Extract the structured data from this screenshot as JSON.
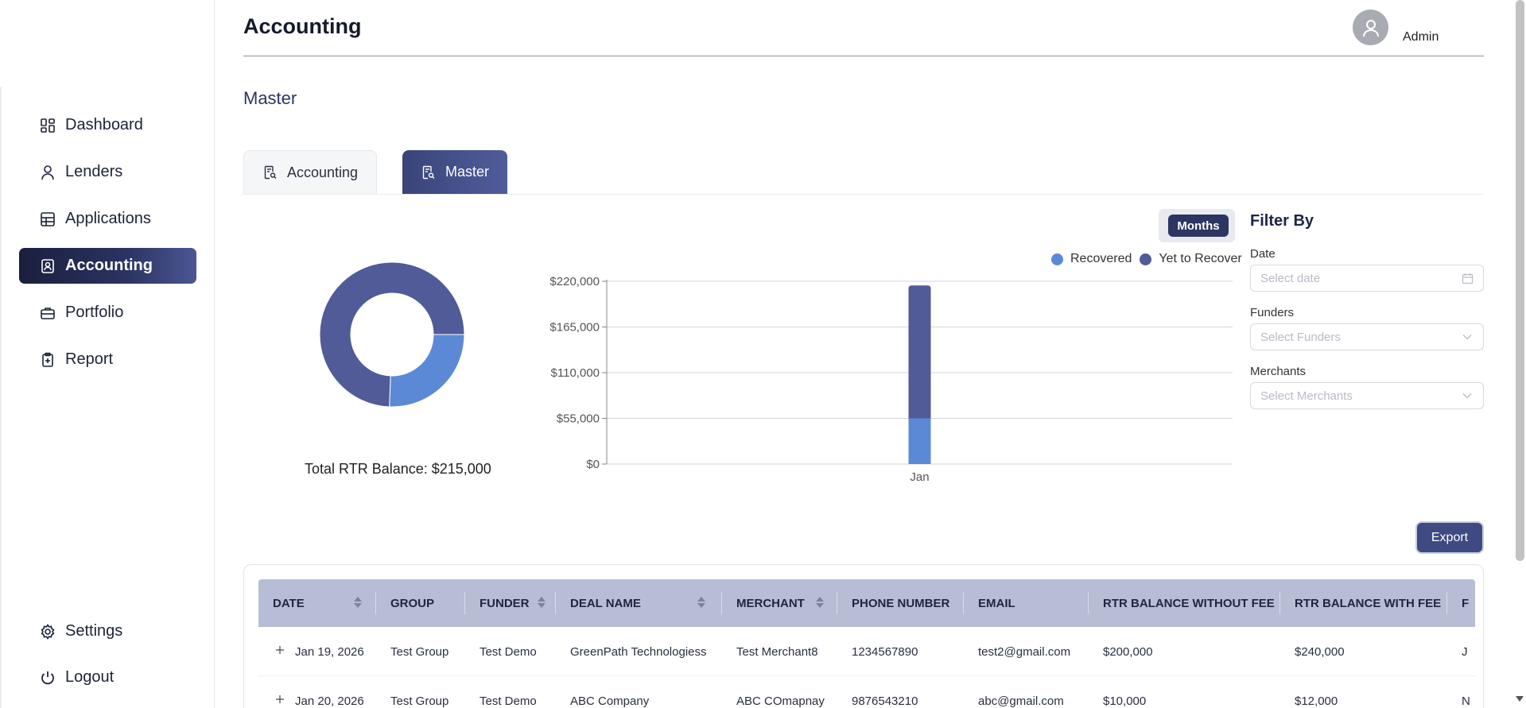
{
  "app": {
    "title": "Accounting"
  },
  "user": {
    "name": "Admin"
  },
  "sidebar": {
    "items": [
      {
        "label": "Dashboard",
        "icon": "dashboard-icon"
      },
      {
        "label": "Lenders",
        "icon": "user-icon"
      },
      {
        "label": "Applications",
        "icon": "table-icon"
      },
      {
        "label": "Accounting",
        "icon": "contact-book-icon",
        "active": true
      },
      {
        "label": "Portfolio",
        "icon": "briefcase-icon"
      },
      {
        "label": "Report",
        "icon": "clipboard-plus-icon"
      }
    ],
    "bottom": [
      {
        "label": "Settings",
        "icon": "gear-icon"
      },
      {
        "label": "Logout",
        "icon": "power-icon"
      }
    ]
  },
  "section": {
    "title": "Master"
  },
  "tabs": [
    {
      "label": "Accounting",
      "active": false
    },
    {
      "label": "Master",
      "active": true
    }
  ],
  "donut": {
    "caption": "Total RTR Balance: $215,000",
    "slices": [
      {
        "name": "Recovered",
        "value": 55000,
        "color": "#5b89d6"
      },
      {
        "name": "Yet to Recover",
        "value": 160000,
        "color": "#505b98"
      }
    ]
  },
  "chart_controls": {
    "period_label": "Months"
  },
  "chart_data": {
    "type": "bar",
    "stacked": true,
    "categories": [
      "Jan"
    ],
    "series": [
      {
        "name": "Recovered",
        "values": [
          55000
        ],
        "color": "#5b89d6"
      },
      {
        "name": "Yet to Recover",
        "values": [
          160000
        ],
        "color": "#505b98"
      }
    ],
    "ylim": [
      0,
      220000
    ],
    "yticks": [
      0,
      55000,
      110000,
      165000,
      220000
    ],
    "ytick_labels": [
      "$0",
      "$55,000",
      "$110,000",
      "$165,000",
      "$220,000"
    ],
    "grid": true,
    "legend": "top-right"
  },
  "filters": {
    "title": "Filter By",
    "date": {
      "label": "Date",
      "placeholder": "Select date"
    },
    "funders": {
      "label": "Funders",
      "placeholder": "Select Funders"
    },
    "merchants": {
      "label": "Merchants",
      "placeholder": "Select Merchants"
    }
  },
  "export": {
    "label": "Export"
  },
  "table": {
    "columns": [
      "DATE",
      "GROUP",
      "FUNDER",
      "DEAL NAME",
      "MERCHANT",
      "PHONE NUMBER",
      "EMAIL",
      "RTR BALANCE WITHOUT FEE",
      "RTR BALANCE WITH FEE",
      "F"
    ],
    "rows": [
      {
        "date": "Jan 19, 2026",
        "group": "Test Group",
        "funder": "Test Demo",
        "deal": "GreenPath Technologiess",
        "merchant": "Test Merchant8",
        "phone": "1234567890",
        "email": "test2@gmail.com",
        "rtr_without": "$200,000",
        "rtr_with": "$240,000",
        "extra": "J"
      },
      {
        "date": "Jan 20, 2026",
        "group": "Test Group",
        "funder": "Test Demo",
        "deal": "ABC Company",
        "merchant": "ABC COmapnay",
        "phone": "9876543210",
        "email": "abc@gmail.com",
        "rtr_without": "$10,000",
        "rtr_with": "$12,000",
        "extra": "N"
      }
    ]
  }
}
